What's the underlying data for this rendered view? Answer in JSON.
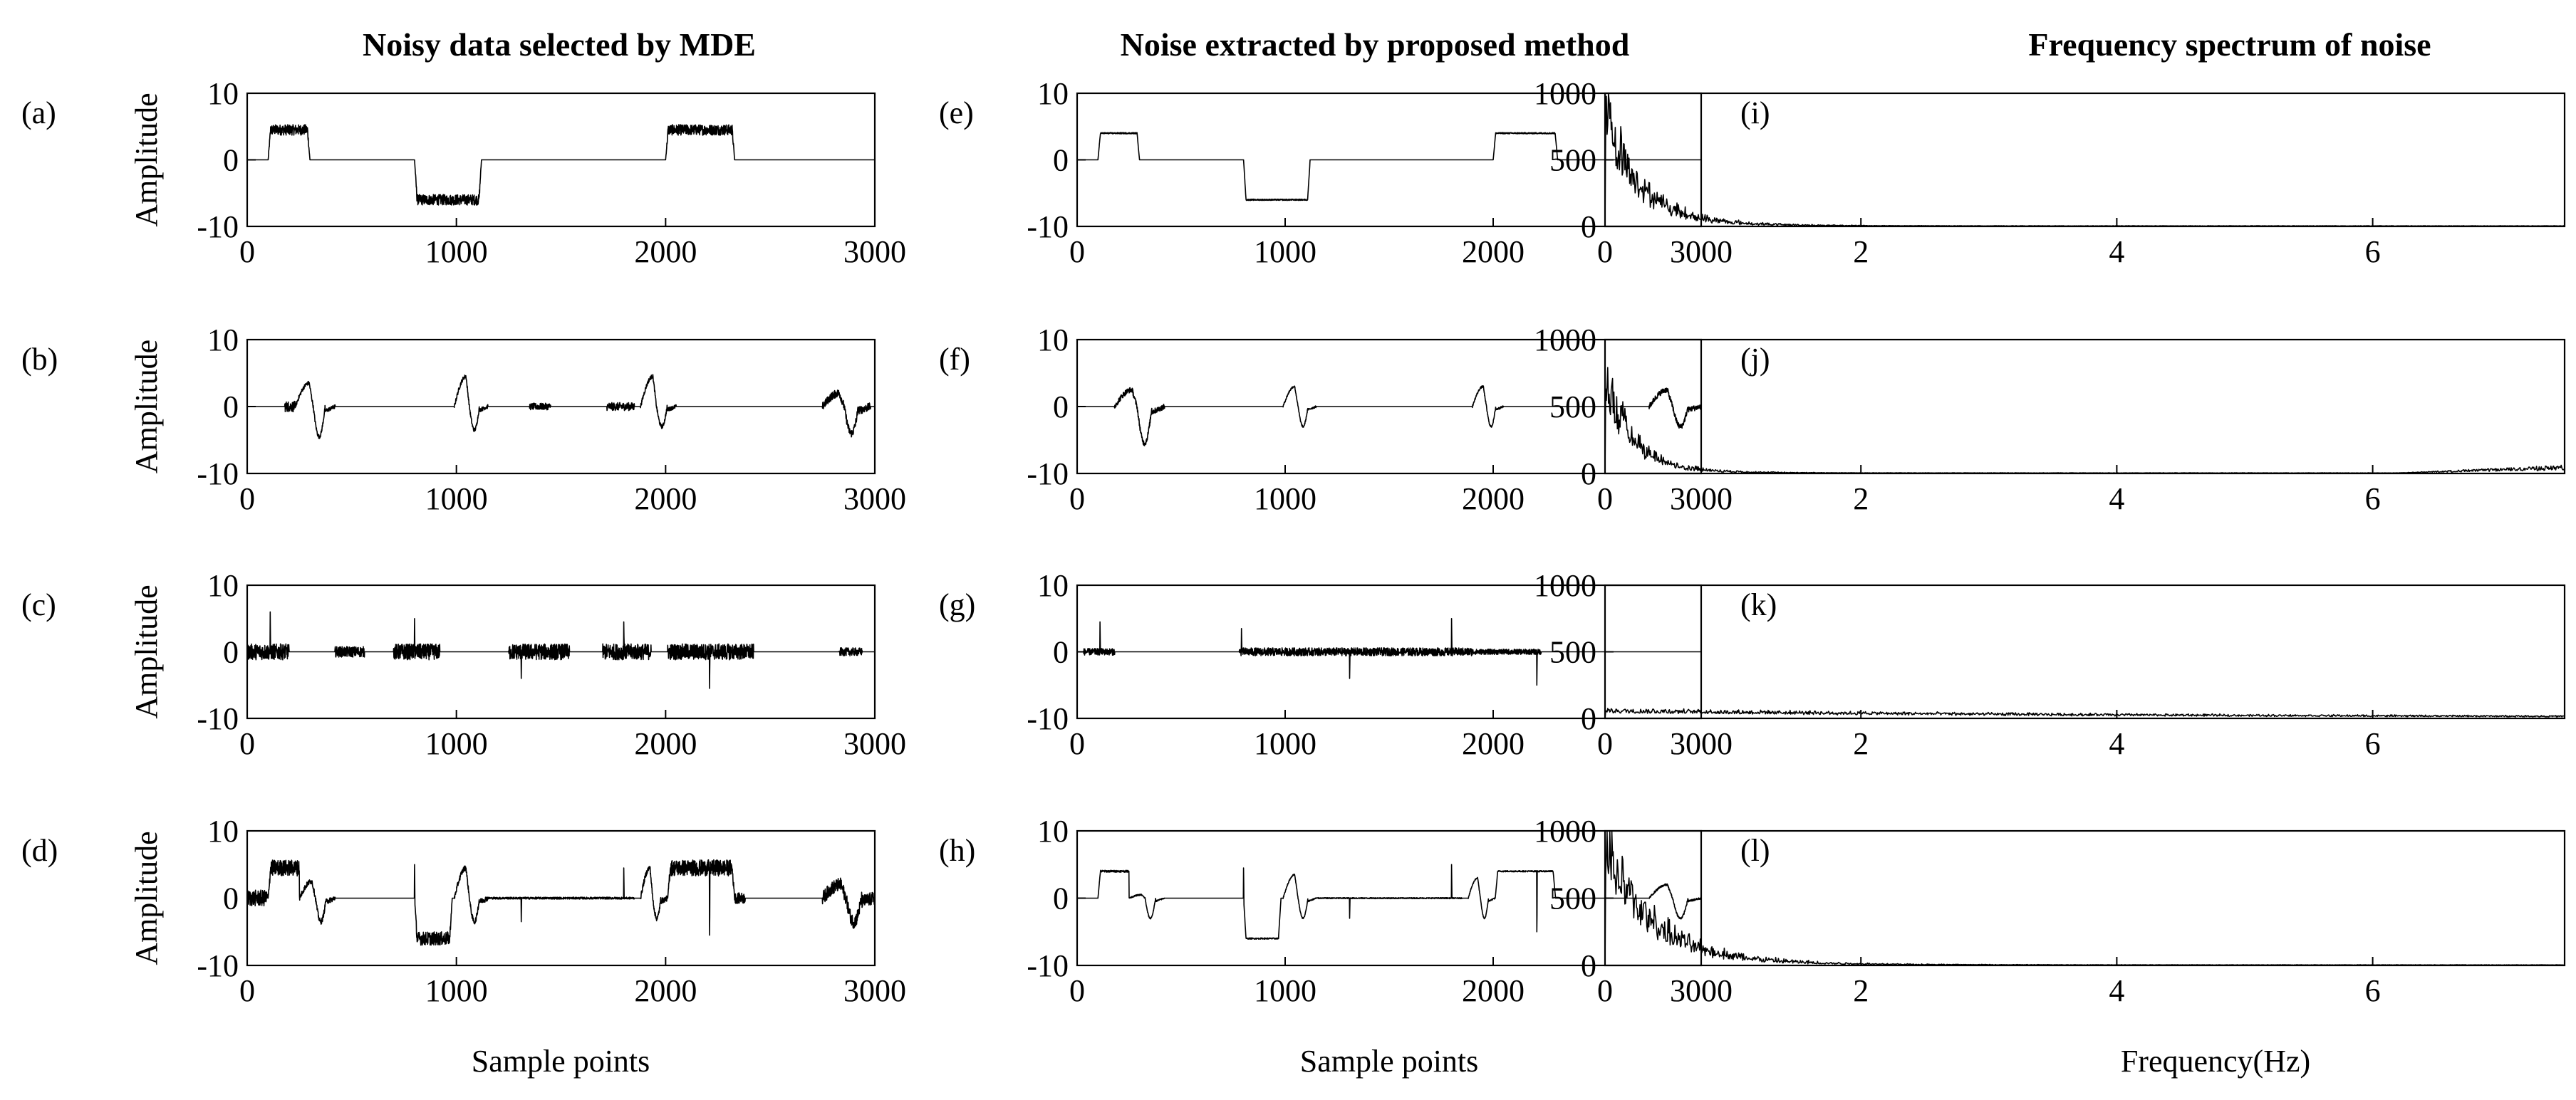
{
  "chart_data": {
    "type": "line",
    "column_titles": [
      "Noisy data selected by MDE",
      "Noise extracted by proposed method",
      "Frequency spectrum of noise"
    ],
    "time_axis": {
      "xlim": [
        0,
        3000
      ],
      "xticks": [
        "0",
        "1000",
        "2000",
        "3000"
      ],
      "ylim": [
        -10,
        10
      ],
      "yticks": [
        "10",
        "0",
        "-10"
      ],
      "ylabel": "Amplitude",
      "xlabel": "Sample points"
    },
    "freq_axis": {
      "xlim": [
        0,
        7.5
      ],
      "xticks": [
        "0",
        "2",
        "4",
        "6"
      ],
      "ylim": [
        0,
        1000
      ],
      "yticks": [
        "1000",
        "500",
        "0"
      ],
      "xlabel": "Frequency(Hz)"
    },
    "panels": [
      {
        "label": "(a)",
        "column": 0,
        "row": 0,
        "segments": [
          {
            "type": "plateau",
            "start": 100,
            "end": 300,
            "level": 4.5,
            "noise": 0.8
          },
          {
            "type": "plateau",
            "start": 800,
            "end": 1120,
            "level": -6,
            "noise": 0.8
          },
          {
            "type": "plateau",
            "start": 2000,
            "end": 2330,
            "level": 4.5,
            "noise": 0.8
          }
        ]
      },
      {
        "label": "(b)",
        "column": 0,
        "row": 1,
        "segments": [
          {
            "type": "flat",
            "start": 180,
            "end": 260,
            "noise": 0.8
          },
          {
            "type": "pulse",
            "start": 230,
            "end": 420,
            "up": 3.5,
            "down": -4.5,
            "noise": 0.3
          },
          {
            "type": "pulse",
            "start": 990,
            "end": 1150,
            "up": 4.5,
            "down": -3.5,
            "noise": 0.3
          },
          {
            "type": "flat",
            "start": 1350,
            "end": 1450,
            "noise": 0.5
          },
          {
            "type": "flat",
            "start": 1720,
            "end": 1850,
            "noise": 0.6
          },
          {
            "type": "pulse",
            "start": 1880,
            "end": 2050,
            "up": 4.5,
            "down": -3,
            "noise": 0.3
          },
          {
            "type": "pulse",
            "start": 2750,
            "end": 2980,
            "up": 2,
            "down": -4,
            "noise": 0.6
          }
        ]
      },
      {
        "label": "(c)",
        "column": 0,
        "row": 2,
        "segments": [
          {
            "type": "flat",
            "start": 0,
            "end": 200,
            "noise": 1.2
          },
          {
            "type": "flat",
            "start": 420,
            "end": 560,
            "noise": 0.8
          },
          {
            "type": "flat",
            "start": 700,
            "end": 920,
            "noise": 1.2
          },
          {
            "type": "flat",
            "start": 1250,
            "end": 1540,
            "noise": 1.2
          },
          {
            "type": "flat",
            "start": 1700,
            "end": 1930,
            "noise": 1.2
          },
          {
            "type": "flat",
            "start": 2010,
            "end": 2420,
            "noise": 1.2
          },
          {
            "type": "flat",
            "start": 2830,
            "end": 2940,
            "noise": 0.6
          },
          {
            "type": "spike",
            "at": 110,
            "amp": 6
          },
          {
            "type": "spike",
            "at": 800,
            "amp": 5
          },
          {
            "type": "spike",
            "at": 1310,
            "amp": -4
          },
          {
            "type": "spike",
            "at": 1800,
            "amp": 4.5
          },
          {
            "type": "spike",
            "at": 2210,
            "amp": -5.5
          }
        ]
      },
      {
        "label": "(d)",
        "column": 0,
        "row": 3,
        "segments": [
          {
            "type": "flat",
            "start": 0,
            "end": 100,
            "noise": 1.2
          },
          {
            "type": "plateau",
            "start": 100,
            "end": 280,
            "level": 4.5,
            "noise": 1.2
          },
          {
            "type": "pulse",
            "start": 250,
            "end": 420,
            "up": 2.5,
            "down": -3.5,
            "noise": 0.4
          },
          {
            "type": "plateau",
            "start": 800,
            "end": 980,
            "level": -6,
            "noise": 1
          },
          {
            "type": "pulse",
            "start": 990,
            "end": 1150,
            "up": 4.5,
            "down": -3.5,
            "noise": 0.4
          },
          {
            "type": "flat",
            "start": 1150,
            "end": 1850,
            "noise": 0.15
          },
          {
            "type": "pulse",
            "start": 1880,
            "end": 2010,
            "up": 4.5,
            "down": -3,
            "noise": 0.4
          },
          {
            "type": "plateau",
            "start": 2010,
            "end": 2330,
            "level": 4.5,
            "noise": 1.2
          },
          {
            "type": "flat",
            "start": 2330,
            "end": 2380,
            "noise": 0.8
          },
          {
            "type": "pulse",
            "start": 2750,
            "end": 3000,
            "up": 2,
            "down": -3.5,
            "noise": 1
          },
          {
            "type": "spike",
            "at": 800,
            "amp": 5
          },
          {
            "type": "spike",
            "at": 1310,
            "amp": -3.5
          },
          {
            "type": "spike",
            "at": 1800,
            "amp": 4.5
          },
          {
            "type": "spike",
            "at": 2210,
            "amp": -5.5
          }
        ]
      },
      {
        "label": "(e)",
        "column": 1,
        "row": 0,
        "segments": [
          {
            "type": "plateau",
            "start": 100,
            "end": 300,
            "level": 4,
            "noise": 0.1
          },
          {
            "type": "plateau",
            "start": 800,
            "end": 1120,
            "level": -6,
            "noise": 0.1
          },
          {
            "type": "plateau",
            "start": 2000,
            "end": 2310,
            "level": 4,
            "noise": 0.1
          }
        ]
      },
      {
        "label": "(f)",
        "column": 1,
        "row": 1,
        "segments": [
          {
            "type": "pulse",
            "start": 180,
            "end": 420,
            "up": 2.5,
            "down": -5.5,
            "noise": 0.4
          },
          {
            "type": "pulse",
            "start": 990,
            "end": 1150,
            "up": 3,
            "down": -3,
            "noise": 0.15
          },
          {
            "type": "pulse",
            "start": 1900,
            "end": 2050,
            "up": 3,
            "down": -3,
            "noise": 0.15
          },
          {
            "type": "pulse",
            "start": 2750,
            "end": 3000,
            "up": 2.5,
            "down": -3,
            "noise": 0.4
          }
        ]
      },
      {
        "label": "(g)",
        "column": 1,
        "row": 2,
        "segments": [
          {
            "type": "flat",
            "start": 30,
            "end": 180,
            "noise": 0.5
          },
          {
            "type": "flat",
            "start": 780,
            "end": 1900,
            "noise": 0.6
          },
          {
            "type": "flat",
            "start": 1900,
            "end": 2230,
            "noise": 0.4
          },
          {
            "type": "spike",
            "at": 110,
            "amp": 4.5
          },
          {
            "type": "spike",
            "at": 790,
            "amp": 3.5
          },
          {
            "type": "spike",
            "at": 1310,
            "amp": -4
          },
          {
            "type": "spike",
            "at": 1800,
            "amp": 5
          },
          {
            "type": "spike",
            "at": 2210,
            "amp": -5
          }
        ]
      },
      {
        "label": "(h)",
        "column": 1,
        "row": 3,
        "segments": [
          {
            "type": "plateau",
            "start": 100,
            "end": 280,
            "level": 4,
            "noise": 0.15
          },
          {
            "type": "pulse",
            "start": 250,
            "end": 420,
            "up": 0.5,
            "down": -3,
            "noise": 0.1
          },
          {
            "type": "plateau",
            "start": 800,
            "end": 980,
            "level": -6,
            "noise": 0.1
          },
          {
            "type": "pulse",
            "start": 990,
            "end": 1150,
            "up": 3.5,
            "down": -3,
            "noise": 0.1
          },
          {
            "type": "flat",
            "start": 1150,
            "end": 1850,
            "noise": 0.08
          },
          {
            "type": "pulse",
            "start": 1880,
            "end": 2010,
            "up": 3,
            "down": -3,
            "noise": 0.1
          },
          {
            "type": "plateau",
            "start": 2010,
            "end": 2300,
            "level": 4,
            "noise": 0.1
          },
          {
            "type": "pulse",
            "start": 2750,
            "end": 3000,
            "up": 2,
            "down": -3,
            "noise": 0.15
          },
          {
            "type": "spike",
            "at": 800,
            "amp": 4.5
          },
          {
            "type": "spike",
            "at": 1310,
            "amp": -3
          },
          {
            "type": "spike",
            "at": 1800,
            "amp": 5
          },
          {
            "type": "spike",
            "at": 2210,
            "amp": -5
          }
        ]
      },
      {
        "label": "(i)",
        "column": 2,
        "row": 0,
        "peak": 1000,
        "decay": 0.25,
        "floor": 5,
        "tail_rise": 0
      },
      {
        "label": "(j)",
        "column": 2,
        "row": 1,
        "peak": 800,
        "decay": 0.2,
        "floor": 5,
        "tail_rise": 40
      },
      {
        "label": "(k)",
        "column": 2,
        "row": 2,
        "peak": 60,
        "decay": 4,
        "floor": 8,
        "tail_rise": 0
      },
      {
        "label": "(l)",
        "column": 2,
        "row": 3,
        "peak": 1000,
        "decay": 0.35,
        "floor": 5,
        "tail_rise": 0
      }
    ]
  }
}
